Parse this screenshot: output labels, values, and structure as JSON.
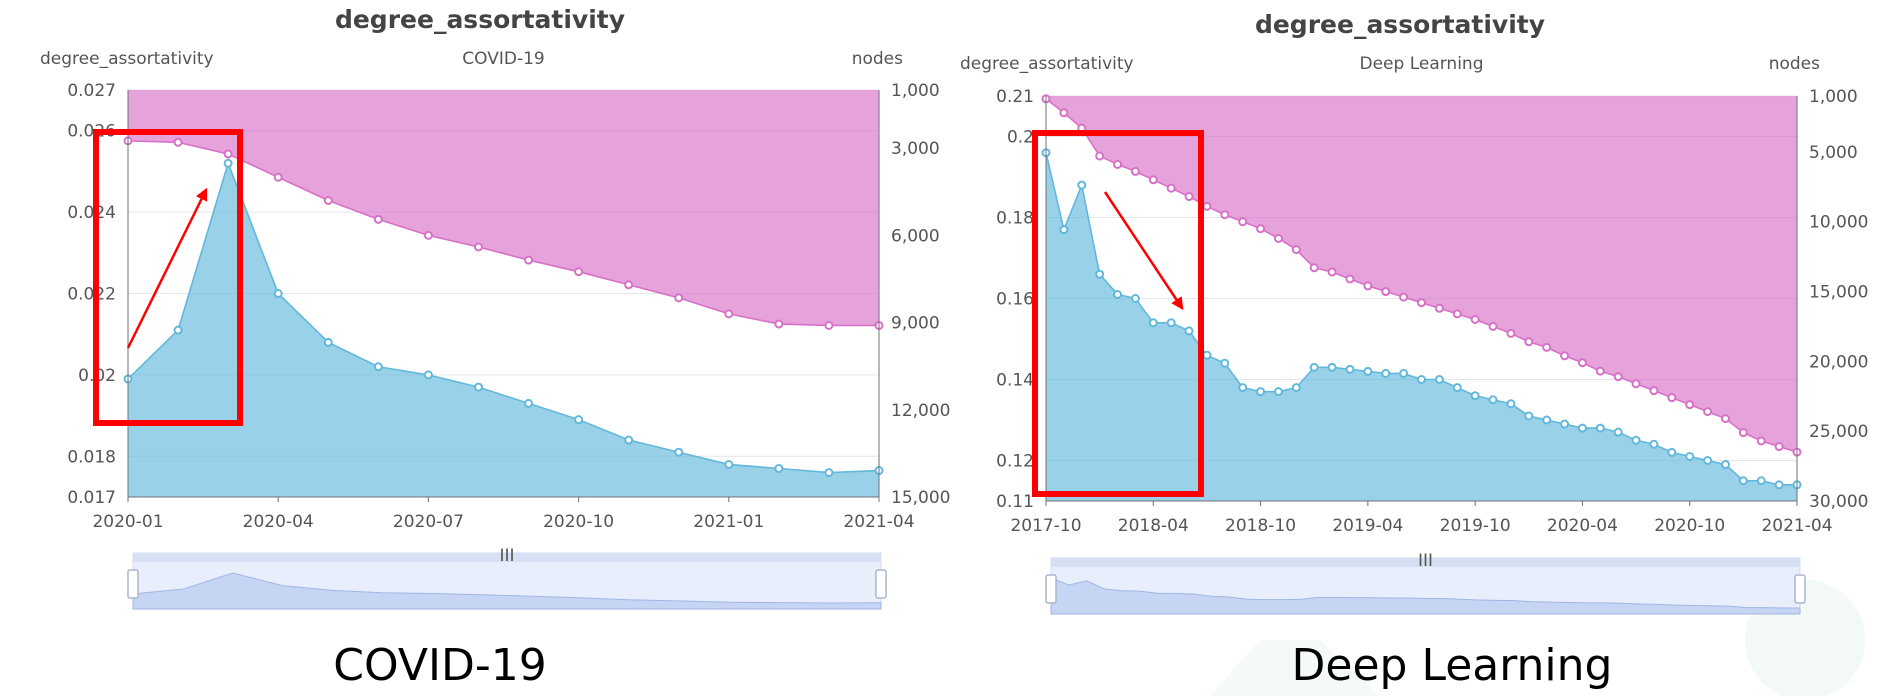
{
  "chart_data": [
    {
      "type": "area",
      "title": "degree_assortativity",
      "subtitle": "COVID-19",
      "ylabel": "degree_assortativity",
      "y2label": "nodes",
      "caption": "COVID-19",
      "x": [
        "2020-01",
        "2020-02",
        "2020-03",
        "2020-04",
        "2020-05",
        "2020-06",
        "2020-07",
        "2020-08",
        "2020-09",
        "2020-10",
        "2020-11",
        "2020-12",
        "2021-01",
        "2021-02",
        "2021-03",
        "2021-04"
      ],
      "x_ticks": [
        "2020-01",
        "2020-04",
        "2020-07",
        "2020-10",
        "2021-01",
        "2021-04"
      ],
      "ylim": [
        0.017,
        0.027
      ],
      "y_ticks": [
        {
          "value": 0.027,
          "label": "0.027"
        },
        {
          "value": 0.026,
          "label": "0.026"
        },
        {
          "value": 0.024,
          "label": "0.024"
        },
        {
          "value": 0.022,
          "label": "0.022"
        },
        {
          "value": 0.02,
          "label": "0.02"
        },
        {
          "value": 0.018,
          "label": "0.018"
        },
        {
          "value": 0.017,
          "label": "0.017"
        }
      ],
      "y2lim": [
        1000,
        15000
      ],
      "y2_inverted": true,
      "y2_ticks": [
        {
          "value": 1000,
          "label": "1,000"
        },
        {
          "value": 3000,
          "label": "3,000"
        },
        {
          "value": 6000,
          "label": "6,000"
        },
        {
          "value": 9000,
          "label": "9,000"
        },
        {
          "value": 12000,
          "label": "12,000"
        },
        {
          "value": 15000,
          "label": "15,000"
        }
      ],
      "series": [
        {
          "name": "degree_assortativity",
          "axis": "left",
          "color": "#62b8dc",
          "values": [
            0.0199,
            0.0211,
            0.0252,
            0.022,
            0.0208,
            0.0202,
            0.02,
            0.0197,
            0.0193,
            0.0189,
            0.0184,
            0.0181,
            0.0178,
            0.0177,
            0.0176,
            0.01765
          ]
        },
        {
          "name": "nodes",
          "axis": "right",
          "color": "#d970c8",
          "values": [
            2750,
            2800,
            3200,
            4000,
            4800,
            5450,
            6000,
            6400,
            6850,
            7250,
            7700,
            8150,
            8700,
            9050,
            9100,
            9100
          ]
        }
      ],
      "annotation": {
        "arrow": "up",
        "box": "2020-01 to 2020-03"
      }
    },
    {
      "type": "area",
      "title": "degree_assortativity",
      "subtitle": "Deep Learning",
      "ylabel": "degree_assortativity",
      "y2label": "nodes",
      "caption": "Deep Learning",
      "x": [
        "2017-10",
        "2017-11",
        "2017-12",
        "2018-01",
        "2018-02",
        "2018-03",
        "2018-04",
        "2018-05",
        "2018-06",
        "2018-07",
        "2018-08",
        "2018-09",
        "2018-10",
        "2018-11",
        "2018-12",
        "2019-01",
        "2019-02",
        "2019-03",
        "2019-04",
        "2019-05",
        "2019-06",
        "2019-07",
        "2019-08",
        "2019-09",
        "2019-10",
        "2019-11",
        "2019-12",
        "2020-01",
        "2020-02",
        "2020-03",
        "2020-04",
        "2020-05",
        "2020-06",
        "2020-07",
        "2020-08",
        "2020-09",
        "2020-10",
        "2020-11",
        "2020-12",
        "2021-01",
        "2021-02",
        "2021-03",
        "2021-04"
      ],
      "x_ticks": [
        "2017-10",
        "2018-04",
        "2018-10",
        "2019-04",
        "2019-10",
        "2020-04",
        "2020-10",
        "2021-04"
      ],
      "ylim": [
        0.11,
        0.21
      ],
      "y_ticks": [
        {
          "value": 0.21,
          "label": "0.21"
        },
        {
          "value": 0.2,
          "label": "0.2"
        },
        {
          "value": 0.18,
          "label": "0.18"
        },
        {
          "value": 0.16,
          "label": "0.16"
        },
        {
          "value": 0.14,
          "label": "0.14"
        },
        {
          "value": 0.12,
          "label": "0.12"
        },
        {
          "value": 0.11,
          "label": "0.11"
        }
      ],
      "y2lim": [
        1000,
        30000
      ],
      "y2_inverted": true,
      "y2_ticks": [
        {
          "value": 1000,
          "label": "1,000"
        },
        {
          "value": 5000,
          "label": "5,000"
        },
        {
          "value": 10000,
          "label": "10,000"
        },
        {
          "value": 15000,
          "label": "15,000"
        },
        {
          "value": 20000,
          "label": "20,000"
        },
        {
          "value": 25000,
          "label": "25,000"
        },
        {
          "value": 30000,
          "label": "30,000"
        }
      ],
      "series": [
        {
          "name": "degree_assortativity",
          "axis": "left",
          "color": "#62b8dc",
          "values": [
            0.196,
            0.177,
            0.188,
            0.166,
            0.161,
            0.16,
            0.154,
            0.154,
            0.152,
            0.146,
            0.144,
            0.138,
            0.137,
            0.137,
            0.138,
            0.143,
            0.143,
            0.1425,
            0.142,
            0.1415,
            0.1415,
            0.14,
            0.14,
            0.138,
            0.136,
            0.135,
            0.134,
            0.131,
            0.13,
            0.129,
            0.128,
            0.128,
            0.127,
            0.125,
            0.124,
            0.122,
            0.121,
            0.12,
            0.119,
            0.115,
            0.115,
            0.114,
            0.114
          ]
        },
        {
          "name": "nodes",
          "axis": "right",
          "color": "#d970c8",
          "values": [
            1200,
            2200,
            3300,
            5300,
            5900,
            6400,
            7000,
            7600,
            8200,
            8900,
            9500,
            10000,
            10500,
            11200,
            12000,
            13300,
            13600,
            14100,
            14600,
            15000,
            15400,
            15800,
            16200,
            16600,
            17000,
            17500,
            18000,
            18600,
            19000,
            19600,
            20100,
            20700,
            21100,
            21600,
            22100,
            22600,
            23100,
            23600,
            24100,
            25100,
            25700,
            26100,
            26500
          ]
        }
      ],
      "annotation": {
        "arrow": "down",
        "box": "2017-10 to 2018-06"
      }
    }
  ]
}
